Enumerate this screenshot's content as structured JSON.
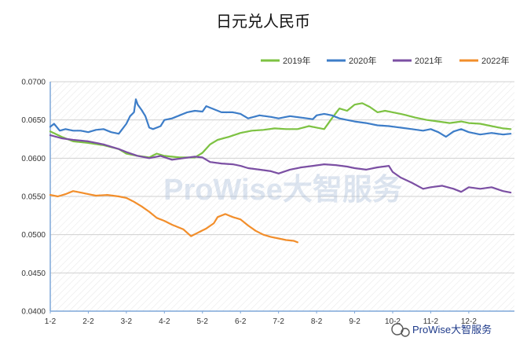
{
  "chart_data": {
    "type": "line",
    "title": "日元兑人民币",
    "xlabel": "",
    "ylabel": "",
    "ylim": [
      0.04,
      0.07
    ],
    "yticks": [
      "0.0700",
      "0.0650",
      "0.0600",
      "0.0550",
      "0.0500",
      "0.0450",
      "0.0400"
    ],
    "xticks": [
      "1-2",
      "2-2",
      "3-2",
      "4-2",
      "5-2",
      "6-2",
      "7-2",
      "8-2",
      "9-2",
      "10-2",
      "11-2",
      "12-2"
    ],
    "grid": "horizontal",
    "legend_position": "top-right",
    "series": [
      {
        "name": "2019年",
        "color": "#7dc242",
        "points": [
          [
            1,
            0.0635
          ],
          [
            1.3,
            0.0628
          ],
          [
            1.6,
            0.0622
          ],
          [
            2,
            0.062
          ],
          [
            2.4,
            0.0617
          ],
          [
            2.8,
            0.0612
          ],
          [
            3,
            0.0606
          ],
          [
            3.3,
            0.0603
          ],
          [
            3.6,
            0.0601
          ],
          [
            3.8,
            0.0606
          ],
          [
            4,
            0.0603
          ],
          [
            4.4,
            0.0601
          ],
          [
            4.8,
            0.0601
          ],
          [
            5,
            0.0607
          ],
          [
            5.2,
            0.0618
          ],
          [
            5.4,
            0.0624
          ],
          [
            5.7,
            0.0628
          ],
          [
            6,
            0.0633
          ],
          [
            6.3,
            0.0636
          ],
          [
            6.6,
            0.0637
          ],
          [
            6.9,
            0.0639
          ],
          [
            7.2,
            0.0638
          ],
          [
            7.5,
            0.0638
          ],
          [
            7.8,
            0.0642
          ],
          [
            8,
            0.064
          ],
          [
            8.2,
            0.0638
          ],
          [
            8.4,
            0.0652
          ],
          [
            8.6,
            0.0665
          ],
          [
            8.8,
            0.0662
          ],
          [
            9,
            0.067
          ],
          [
            9.2,
            0.0672
          ],
          [
            9.4,
            0.0667
          ],
          [
            9.6,
            0.066
          ],
          [
            9.8,
            0.0662
          ],
          [
            10,
            0.066
          ],
          [
            10.3,
            0.0657
          ],
          [
            10.6,
            0.0653
          ],
          [
            10.9,
            0.065
          ],
          [
            11.2,
            0.0648
          ],
          [
            11.5,
            0.0646
          ],
          [
            11.8,
            0.0648
          ],
          [
            12,
            0.0646
          ],
          [
            12.3,
            0.0645
          ],
          [
            12.6,
            0.0642
          ],
          [
            12.9,
            0.0639
          ],
          [
            13.1,
            0.0638
          ]
        ]
      },
      {
        "name": "2020年",
        "color": "#3d7dc8",
        "points": [
          [
            1,
            0.0641
          ],
          [
            1.1,
            0.0645
          ],
          [
            1.25,
            0.0636
          ],
          [
            1.4,
            0.0638
          ],
          [
            1.6,
            0.0636
          ],
          [
            1.8,
            0.0636
          ],
          [
            2,
            0.0634
          ],
          [
            2.2,
            0.0637
          ],
          [
            2.4,
            0.0638
          ],
          [
            2.6,
            0.0634
          ],
          [
            2.8,
            0.0632
          ],
          [
            3,
            0.0645
          ],
          [
            3.1,
            0.0655
          ],
          [
            3.2,
            0.066
          ],
          [
            3.25,
            0.0677
          ],
          [
            3.3,
            0.067
          ],
          [
            3.4,
            0.0663
          ],
          [
            3.5,
            0.0655
          ],
          [
            3.6,
            0.064
          ],
          [
            3.7,
            0.0638
          ],
          [
            3.9,
            0.0642
          ],
          [
            4,
            0.065
          ],
          [
            4.2,
            0.0652
          ],
          [
            4.4,
            0.0656
          ],
          [
            4.6,
            0.066
          ],
          [
            4.8,
            0.0662
          ],
          [
            5,
            0.0661
          ],
          [
            5.1,
            0.0668
          ],
          [
            5.3,
            0.0664
          ],
          [
            5.5,
            0.066
          ],
          [
            5.8,
            0.066
          ],
          [
            6,
            0.0658
          ],
          [
            6.2,
            0.0652
          ],
          [
            6.5,
            0.0656
          ],
          [
            6.8,
            0.0654
          ],
          [
            7,
            0.0652
          ],
          [
            7.3,
            0.0655
          ],
          [
            7.6,
            0.0653
          ],
          [
            7.9,
            0.0651
          ],
          [
            8,
            0.0656
          ],
          [
            8.2,
            0.0658
          ],
          [
            8.4,
            0.0656
          ],
          [
            8.6,
            0.0652
          ],
          [
            8.8,
            0.065
          ],
          [
            9,
            0.0648
          ],
          [
            9.3,
            0.0646
          ],
          [
            9.6,
            0.0643
          ],
          [
            9.9,
            0.0642
          ],
          [
            10.2,
            0.064
          ],
          [
            10.5,
            0.0638
          ],
          [
            10.8,
            0.0636
          ],
          [
            11,
            0.0638
          ],
          [
            11.2,
            0.0634
          ],
          [
            11.4,
            0.0628
          ],
          [
            11.6,
            0.0635
          ],
          [
            11.8,
            0.0638
          ],
          [
            12,
            0.0634
          ],
          [
            12.3,
            0.0631
          ],
          [
            12.6,
            0.0633
          ],
          [
            12.9,
            0.0631
          ],
          [
            13.1,
            0.0632
          ]
        ]
      },
      {
        "name": "2021年",
        "color": "#7b4fa3",
        "points": [
          [
            1,
            0.063
          ],
          [
            1.3,
            0.0626
          ],
          [
            1.6,
            0.0624
          ],
          [
            2,
            0.0622
          ],
          [
            2.4,
            0.0618
          ],
          [
            2.8,
            0.0612
          ],
          [
            3,
            0.0608
          ],
          [
            3.3,
            0.0603
          ],
          [
            3.6,
            0.06
          ],
          [
            3.9,
            0.0603
          ],
          [
            4.2,
            0.0598
          ],
          [
            4.5,
            0.06
          ],
          [
            4.8,
            0.0602
          ],
          [
            5,
            0.0601
          ],
          [
            5.2,
            0.0595
          ],
          [
            5.5,
            0.0593
          ],
          [
            5.8,
            0.0592
          ],
          [
            6,
            0.059
          ],
          [
            6.2,
            0.0587
          ],
          [
            6.5,
            0.0585
          ],
          [
            6.8,
            0.0583
          ],
          [
            7,
            0.058
          ],
          [
            7.3,
            0.0585
          ],
          [
            7.6,
            0.0588
          ],
          [
            7.9,
            0.059
          ],
          [
            8.2,
            0.0592
          ],
          [
            8.5,
            0.0591
          ],
          [
            8.8,
            0.0589
          ],
          [
            9,
            0.0587
          ],
          [
            9.3,
            0.0585
          ],
          [
            9.6,
            0.0588
          ],
          [
            9.9,
            0.059
          ],
          [
            10,
            0.0582
          ],
          [
            10.2,
            0.0575
          ],
          [
            10.5,
            0.0568
          ],
          [
            10.8,
            0.056
          ],
          [
            11,
            0.0562
          ],
          [
            11.3,
            0.0564
          ],
          [
            11.6,
            0.056
          ],
          [
            11.8,
            0.0556
          ],
          [
            12,
            0.0562
          ],
          [
            12.3,
            0.056
          ],
          [
            12.6,
            0.0562
          ],
          [
            12.9,
            0.0557
          ],
          [
            13.1,
            0.0555
          ]
        ]
      },
      {
        "name": "2022年",
        "color": "#f28e2b",
        "points": [
          [
            1,
            0.0552
          ],
          [
            1.2,
            0.055
          ],
          [
            1.4,
            0.0553
          ],
          [
            1.6,
            0.0557
          ],
          [
            1.8,
            0.0555
          ],
          [
            2,
            0.0553
          ],
          [
            2.2,
            0.0551
          ],
          [
            2.5,
            0.0552
          ],
          [
            2.8,
            0.055
          ],
          [
            3,
            0.0548
          ],
          [
            3.2,
            0.0543
          ],
          [
            3.4,
            0.0537
          ],
          [
            3.6,
            0.053
          ],
          [
            3.8,
            0.0522
          ],
          [
            4,
            0.0518
          ],
          [
            4.2,
            0.0513
          ],
          [
            4.5,
            0.0507
          ],
          [
            4.7,
            0.0498
          ],
          [
            4.9,
            0.0503
          ],
          [
            5.1,
            0.0508
          ],
          [
            5.3,
            0.0515
          ],
          [
            5.4,
            0.0523
          ],
          [
            5.6,
            0.0527
          ],
          [
            5.8,
            0.0523
          ],
          [
            6,
            0.052
          ],
          [
            6.2,
            0.0512
          ],
          [
            6.4,
            0.0505
          ],
          [
            6.6,
            0.05
          ],
          [
            6.8,
            0.0497
          ],
          [
            7,
            0.0495
          ],
          [
            7.2,
            0.0493
          ],
          [
            7.4,
            0.0492
          ],
          [
            7.5,
            0.049
          ]
        ]
      }
    ]
  },
  "watermark": "ProWise大智服务",
  "footer_brand": "ProWise大智服务"
}
